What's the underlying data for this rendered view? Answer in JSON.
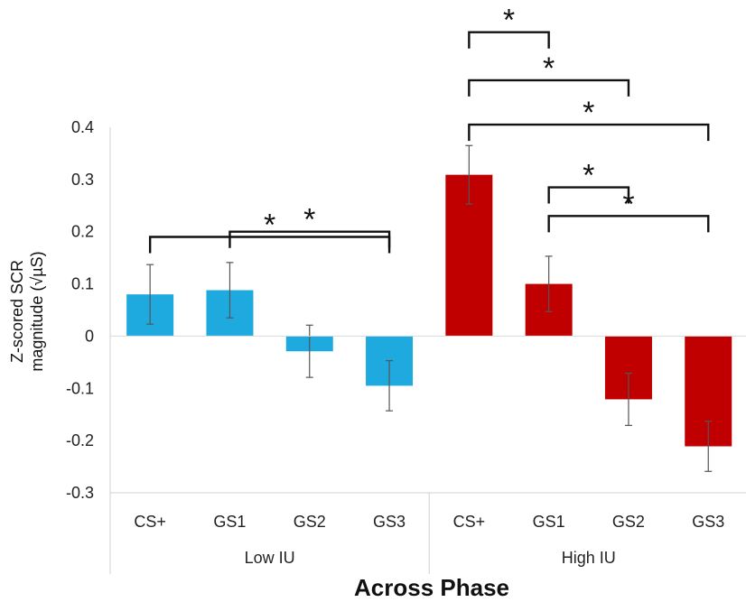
{
  "chart_data": {
    "type": "bar",
    "xlabel": "Across Phase",
    "ylabel_line1": "Z-scored SCR",
    "ylabel_line2": "magnitude (√µS)",
    "ylim": [
      -0.3,
      0.4
    ],
    "yticks": [
      "0.4",
      "0.3",
      "0.2",
      "0.1",
      "0",
      "-0.1",
      "-0.2",
      "-0.3"
    ],
    "ytick_values": [
      0.4,
      0.3,
      0.2,
      0.1,
      0,
      -0.1,
      -0.2,
      -0.3
    ],
    "groups": [
      {
        "name": "Low IU",
        "color": "#1EAADF",
        "categories": [
          "CS+",
          "GS1",
          "GS2",
          "GS3"
        ],
        "values": [
          0.08,
          0.088,
          -0.029,
          -0.095
        ],
        "errors": [
          0.057,
          0.053,
          0.05,
          0.048
        ]
      },
      {
        "name": "High IU",
        "color": "#C00000",
        "categories": [
          "CS+",
          "GS1",
          "GS2",
          "GS3"
        ],
        "values": [
          0.309,
          0.1,
          -0.121,
          -0.211
        ],
        "errors": [
          0.056,
          0.053,
          0.05,
          0.048
        ]
      }
    ],
    "significance": [
      {
        "from": [
          0,
          1
        ],
        "to": [
          0,
          3
        ],
        "level": 0.2,
        "label": "*"
      },
      {
        "from": [
          0,
          0
        ],
        "to": [
          0,
          3
        ],
        "level": 0.19,
        "label": "*"
      },
      {
        "from": [
          1,
          1
        ],
        "to": [
          1,
          2
        ],
        "level": 0.285,
        "label": "*"
      },
      {
        "from": [
          1,
          1
        ],
        "to": [
          1,
          3
        ],
        "level": 0.23,
        "label": "*"
      },
      {
        "from": [
          1,
          0
        ],
        "to": [
          1,
          1
        ],
        "level": 0.582,
        "label": "*"
      },
      {
        "from": [
          1,
          0
        ],
        "to": [
          1,
          2
        ],
        "level": 0.49,
        "label": "*"
      },
      {
        "from": [
          1,
          0
        ],
        "to": [
          1,
          3
        ],
        "level": 0.405,
        "label": "*"
      }
    ],
    "grid": false,
    "legend": "none"
  }
}
